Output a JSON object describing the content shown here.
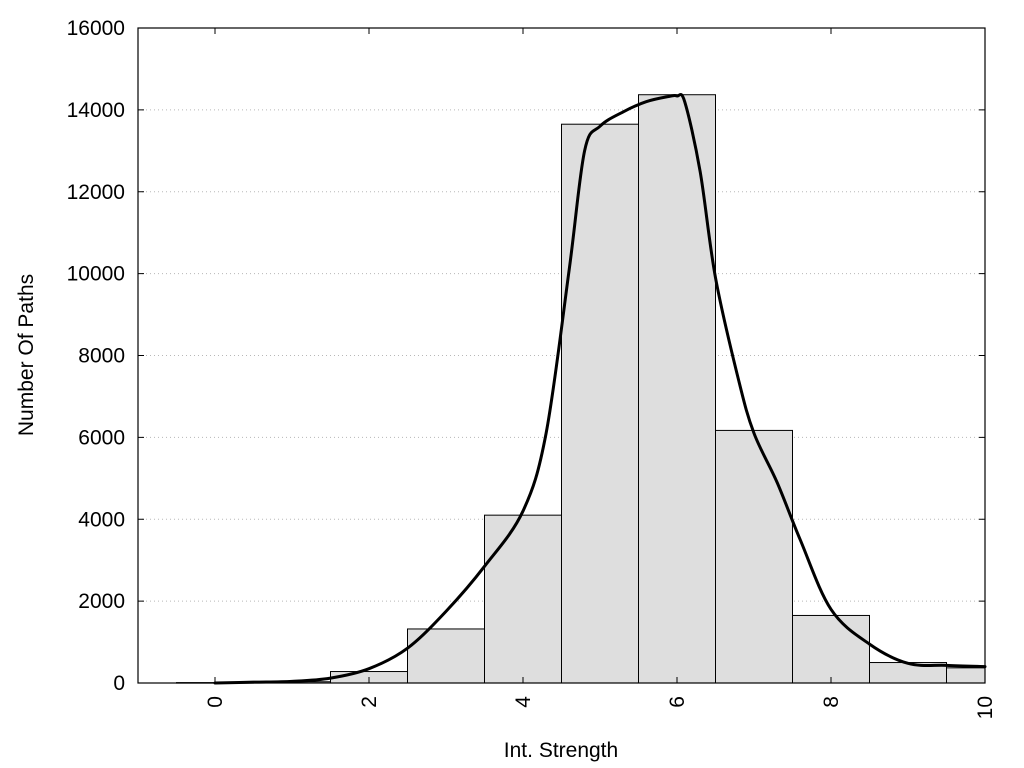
{
  "chart_data": {
    "type": "bar",
    "xlabel": "Int. Strength",
    "ylabel": "Number Of Paths",
    "xlim": [
      -1,
      10
    ],
    "ylim": [
      0,
      16000
    ],
    "x_ticks": [
      0,
      2,
      4,
      6,
      8,
      10
    ],
    "x_tick_labels": [
      "0",
      "2",
      "4",
      "6",
      "8",
      "10"
    ],
    "y_ticks": [
      0,
      2000,
      4000,
      6000,
      8000,
      10000,
      12000,
      14000,
      16000
    ],
    "y_tick_labels": [
      "0",
      "2000",
      "4000",
      "6000",
      "8000",
      "10000",
      "12000",
      "14000",
      "16000"
    ],
    "grid": "horizontal dotted",
    "histogram": {
      "x": [
        0,
        1,
        2,
        3,
        4,
        5,
        6,
        7,
        8,
        9,
        10
      ],
      "values": [
        10,
        30,
        280,
        1320,
        4100,
        13650,
        14370,
        6170,
        1650,
        500,
        370
      ]
    },
    "fitted_curve": {
      "x": [
        0,
        0.5,
        1,
        1.5,
        2,
        2.5,
        3,
        3.5,
        4,
        4.3,
        4.6,
        4.8,
        5,
        5.3,
        5.6,
        5.9,
        6,
        6.1,
        6.3,
        6.5,
        6.8,
        7,
        7.3,
        7.6,
        8,
        8.5,
        9,
        9.5,
        10
      ],
      "y": [
        0,
        20,
        40,
        120,
        350,
        850,
        1750,
        2850,
        4200,
        6100,
        10100,
        13000,
        13600,
        13950,
        14200,
        14330,
        14340,
        14200,
        12500,
        9900,
        7400,
        6100,
        4900,
        3500,
        1800,
        950,
        480,
        430,
        400
      ]
    }
  }
}
